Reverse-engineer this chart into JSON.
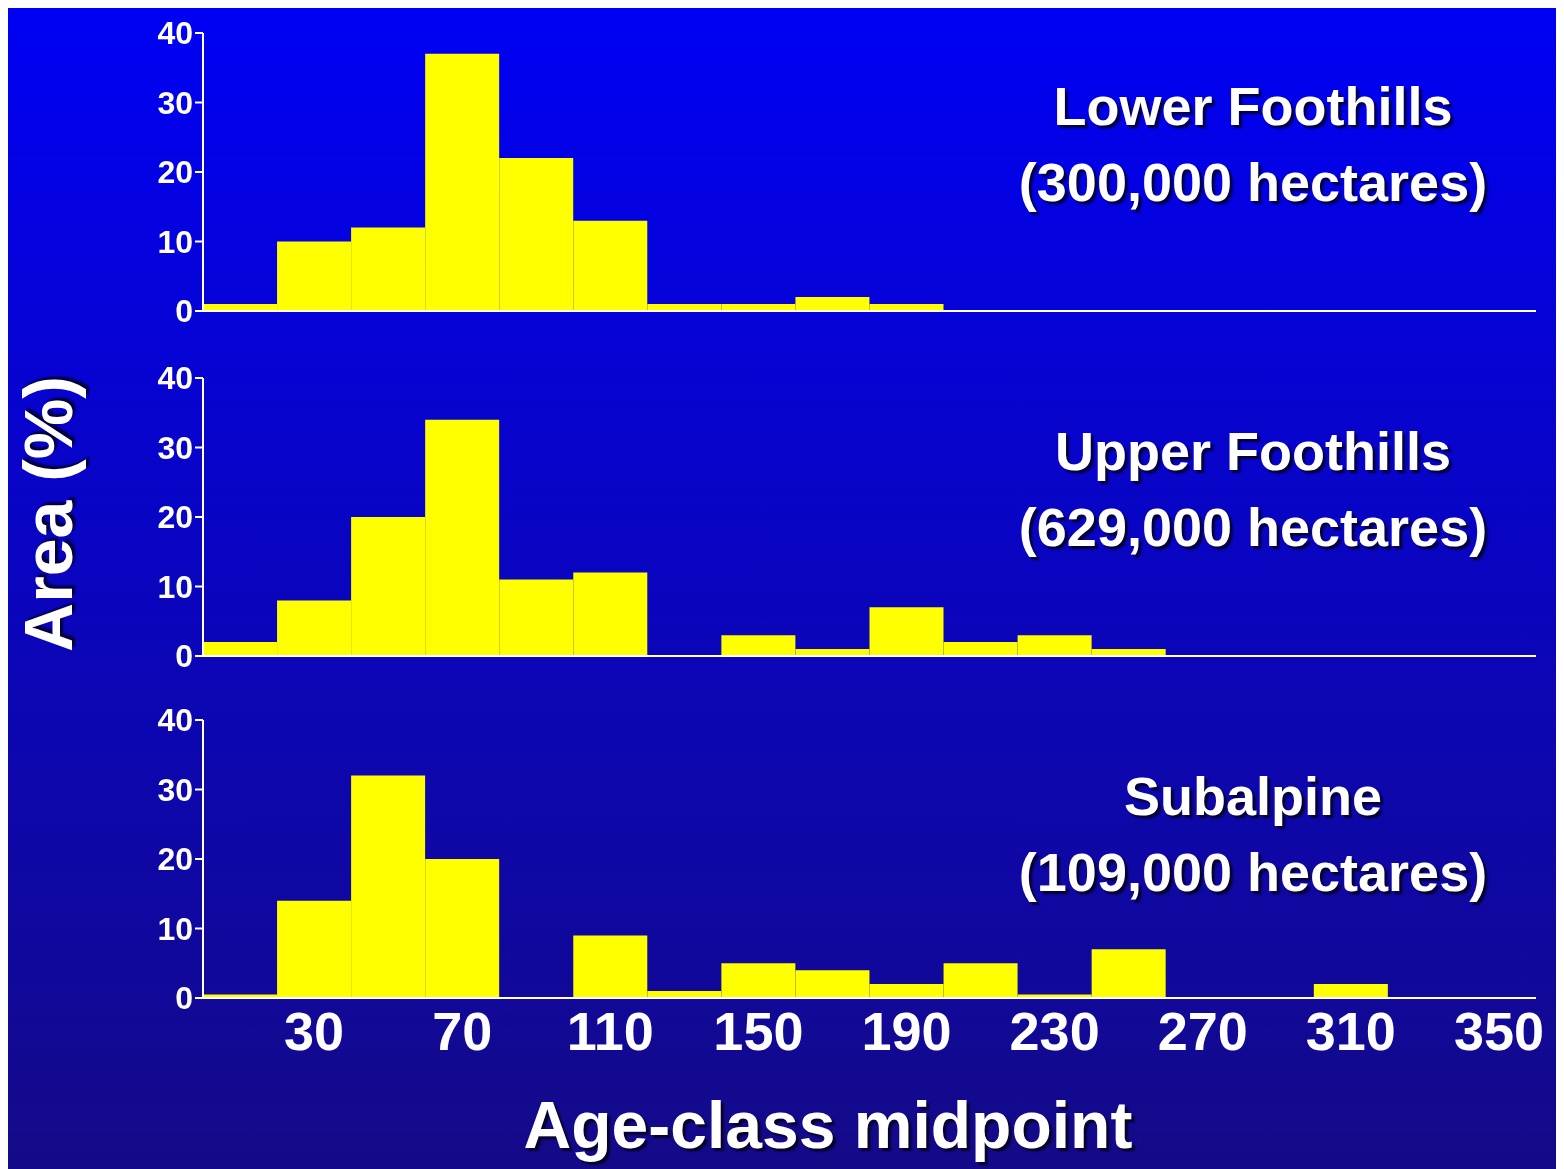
{
  "chart_data": [
    {
      "type": "bar",
      "title": "Lower Foothills",
      "subtitle": "(300,000 hectares)",
      "categories": [
        null,
        "30",
        null,
        "70",
        null,
        "110",
        null,
        "150",
        null,
        "190",
        null,
        "230",
        null,
        "270",
        null,
        "310",
        null,
        "350"
      ],
      "values": [
        1,
        10,
        12,
        37,
        22,
        13,
        1,
        1,
        2,
        1,
        0,
        0,
        0,
        0,
        0,
        0,
        0,
        0
      ],
      "color": "#ffff00",
      "ylim": [
        0,
        40
      ],
      "yticks": [
        0,
        10,
        20,
        30,
        40
      ],
      "tick_labels": "y"
    },
    {
      "type": "bar",
      "title": "Upper Foothills",
      "subtitle": "(629,000 hectares)",
      "ylabel": "Area (%)",
      "categories": [
        null,
        "30",
        null,
        "70",
        null,
        "110",
        null,
        "150",
        null,
        "190",
        null,
        "230",
        null,
        "270",
        null,
        "310",
        null,
        "350"
      ],
      "values": [
        2,
        8,
        20,
        34,
        11,
        12,
        0,
        3,
        1,
        7,
        2,
        3,
        1,
        0,
        0,
        0,
        0,
        0
      ],
      "color": "#ffff00",
      "ylim": [
        0,
        40
      ],
      "yticks": [
        0,
        10,
        20,
        30,
        40
      ],
      "tick_labels": "y"
    },
    {
      "type": "bar",
      "title": "Subalpine",
      "subtitle": "(109,000 hectares)",
      "xlabel": "Age-class midpoint",
      "categories": [
        null,
        "30",
        null,
        "70",
        null,
        "110",
        null,
        "150",
        null,
        "190",
        null,
        "230",
        null,
        "270",
        null,
        "310",
        null,
        "350"
      ],
      "values": [
        0.5,
        14,
        32,
        20,
        0,
        9,
        1,
        5,
        4,
        2,
        5,
        0.5,
        7,
        0,
        0,
        2,
        0,
        0
      ],
      "color": "#ffff00",
      "ylim": [
        0,
        40
      ],
      "yticks": [
        0,
        10,
        20,
        30,
        40
      ]
    }
  ]
}
